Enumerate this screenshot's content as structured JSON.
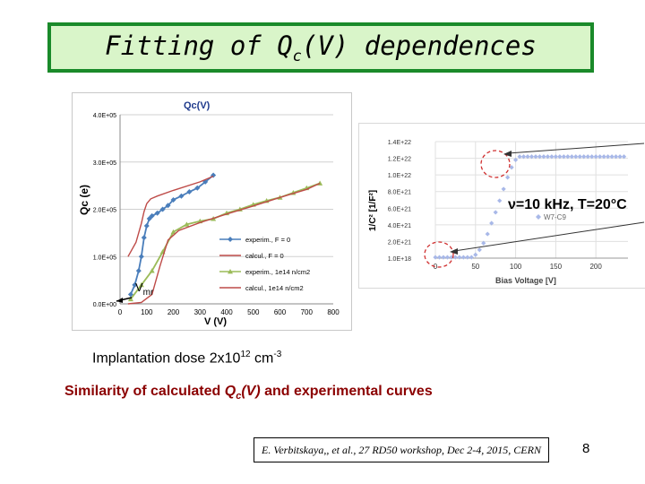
{
  "slide": {
    "title_main": "Fitting of Q",
    "title_sub": "c",
    "title_end": "(V) dependences",
    "implant_text": "Implantation dose 2x10",
    "implant_exp": "12",
    "implant_unit": " cm",
    "implant_unit_exp": "-3",
    "similarity_pre": "Similarity of calculated ",
    "similarity_q": "Q",
    "similarity_qsub": "c",
    "similarity_v": "(V)",
    "similarity_post": " and experimental curves",
    "reference": "E. Verbitskaya,, et al., 27 RD50 workshop, Dec 2-4, 2015, CERN",
    "page_number": "8"
  },
  "chart_data": [
    {
      "type": "line",
      "title": "Qc(V)",
      "xlabel": "V (V)",
      "ylabel": "Qc (e)",
      "xlim": [
        0,
        800
      ],
      "ylim": [
        0,
        400000
      ],
      "x_ticks": [
        "0",
        "100",
        "200",
        "300",
        "400",
        "500",
        "600",
        "700",
        "800"
      ],
      "y_ticks": [
        "0.0E+00",
        "1.0E+05",
        "2.0E+05",
        "3.0E+05",
        "4.0E+05"
      ],
      "annotation": "V",
      "annotation_sub": "mr",
      "legend": "bottom-right",
      "series": [
        {
          "name": "experim., F = 0",
          "color": "#4a7ebb",
          "marker": "diamond",
          "x": [
            40,
            55,
            70,
            80,
            90,
            100,
            110,
            120,
            140,
            160,
            180,
            200,
            230,
            260,
            290,
            320,
            350
          ],
          "y": [
            20000,
            40000,
            70000,
            100000,
            140000,
            165000,
            180000,
            186000,
            192000,
            200000,
            208000,
            220000,
            228000,
            237000,
            245000,
            258000,
            272000
          ]
        },
        {
          "name": "calcul., F = 0",
          "color": "#be4b48",
          "marker": "none",
          "x": [
            30,
            60,
            80,
            90,
            100,
            115,
            140,
            200,
            300,
            350
          ],
          "y": [
            100000,
            130000,
            170000,
            195000,
            212000,
            222000,
            228000,
            240000,
            258000,
            270000
          ]
        },
        {
          "name": "experim., 1e14 n/cm2",
          "color": "#9bbb59",
          "marker": "triangle",
          "x": [
            40,
            80,
            120,
            160,
            200,
            250,
            300,
            350,
            400,
            450,
            500,
            550,
            600,
            650,
            700,
            750
          ],
          "y": [
            10000,
            40000,
            70000,
            110000,
            152000,
            168000,
            175000,
            180000,
            192000,
            200000,
            210000,
            218000,
            225000,
            235000,
            245000,
            255000
          ]
        },
        {
          "name": "calcul., 1e14 n/cm2",
          "color": "#be4b48",
          "marker": "none",
          "x": [
            30,
            80,
            120,
            150,
            180,
            220,
            300,
            400,
            500,
            600,
            700,
            750
          ],
          "y": [
            0,
            3000,
            20000,
            80000,
            135000,
            155000,
            172000,
            190000,
            207000,
            225000,
            242000,
            255000
          ]
        }
      ]
    },
    {
      "type": "scatter",
      "title": "",
      "xlabel": "Bias Voltage [V]",
      "ylabel": "1/C² [1/F²]",
      "xlim": [
        0,
        240
      ],
      "x_ticks": [
        "0",
        "50",
        "100",
        "150",
        "200"
      ],
      "y_ticks": [
        "1.0E+18",
        "2.0E+21",
        "4.0E+21",
        "6.0E+21",
        "8.0E+21",
        "1.0E+22",
        "1.2E+22",
        "1.4E+22"
      ],
      "annotation": "ν=10 kHz, T=20°C",
      "legend": "right",
      "series": [
        {
          "name": "W7-C9",
          "color": "#a8b8e8",
          "marker": "diamond",
          "x": [
            0,
            5,
            10,
            15,
            20,
            25,
            30,
            35,
            40,
            45,
            50,
            55,
            60,
            65,
            70,
            75,
            80,
            85,
            90,
            95,
            100,
            105,
            110,
            115,
            120,
            125,
            130,
            135,
            140,
            145,
            150,
            155,
            160,
            165,
            170,
            175,
            180,
            185,
            190,
            195,
            200,
            205,
            210,
            215,
            220,
            225,
            230,
            235
          ],
          "y": [
            0.1,
            0.1,
            0.1,
            0.1,
            0.1,
            0.1,
            0.1,
            0.1,
            0.1,
            0.1,
            0.4,
            1.0,
            1.8,
            2.9,
            4.2,
            5.5,
            6.9,
            8.3,
            9.7,
            10.9,
            11.8,
            12.2,
            12.2,
            12.2,
            12.2,
            12.2,
            12.2,
            12.2,
            12.2,
            12.2,
            12.2,
            12.2,
            12.2,
            12.2,
            12.2,
            12.2,
            12.2,
            12.2,
            12.2,
            12.2,
            12.2,
            12.2,
            12.2,
            12.2,
            12.2,
            12.2,
            12.2,
            12.2
          ]
        }
      ]
    }
  ]
}
